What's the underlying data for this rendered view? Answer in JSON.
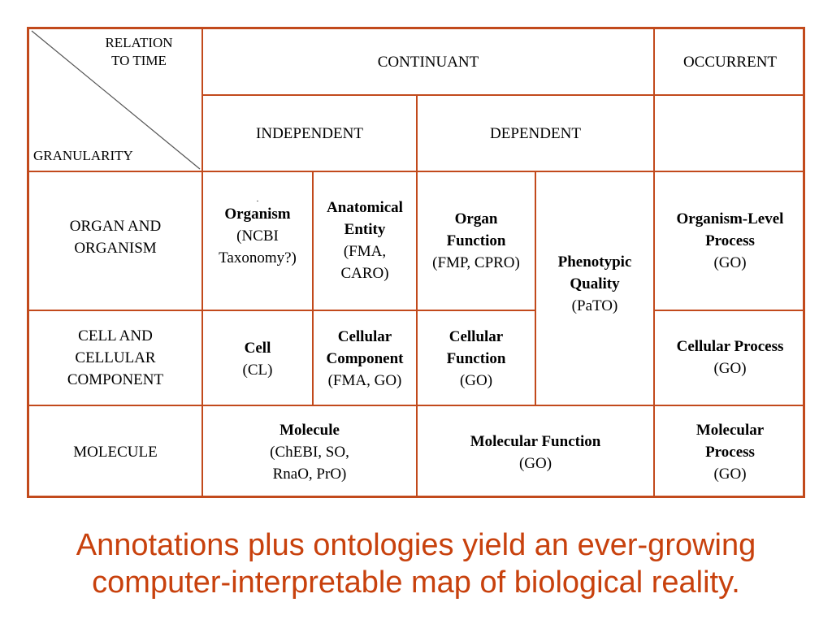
{
  "corner": {
    "relation_line1": "RELATION",
    "relation_line2": "TO TIME",
    "granularity": "GRANULARITY"
  },
  "headers": {
    "continuant": "CONTINUANT",
    "occurrent": "OCCURRENT",
    "independent": "INDEPENDENT",
    "dependent": "DEPENDENT"
  },
  "rows": {
    "organ": {
      "line1": "ORGAN AND",
      "line2": "ORGANISM"
    },
    "cell": {
      "line1": "CELL AND",
      "line2": "CELLULAR",
      "line3": "COMPONENT"
    },
    "molecule": {
      "line1": "MOLECULE"
    }
  },
  "cells": {
    "organism": {
      "dot": ".",
      "name": "Organism",
      "src1": "(NCBI",
      "src2": "Taxonomy?)"
    },
    "anatomical": {
      "name1": "Anatomical",
      "name2": "Entity",
      "src1": "(FMA,",
      "src2": "CARO)"
    },
    "organ_function": {
      "name1": "Organ",
      "name2": "Function",
      "src1": "(FMP, CPRO)"
    },
    "phenotypic": {
      "name1": "Phenotypic",
      "name2": "Quality",
      "src1": "(PaTO)"
    },
    "organism_process": {
      "name1": "Organism-Level",
      "name2": "Process",
      "src1": "(GO)"
    },
    "cell": {
      "name1": "Cell",
      "src1": "(CL)"
    },
    "cellular_component": {
      "name1": "Cellular",
      "name2": "Component",
      "src1": "(FMA, GO)"
    },
    "cellular_function": {
      "name1": "Cellular",
      "name2": "Function",
      "src1": "(GO)"
    },
    "cellular_process": {
      "name1": "Cellular Process",
      "src1": "(GO)"
    },
    "molecule": {
      "name1": "Molecule",
      "src1": "(ChEBI, SO,",
      "src2": "RnaO, PrO)"
    },
    "molecular_function": {
      "name1": "Molecular Function",
      "src1": "(GO)"
    },
    "molecular_process": {
      "name1": "Molecular",
      "name2": "Process",
      "src1": "(GO)"
    }
  },
  "caption": {
    "line1": "Annotations plus ontologies yield an ever-growing",
    "line2": "computer-interpretable map of biological reality."
  },
  "colors": {
    "border": "#c24a1c",
    "caption": "#c8410d"
  }
}
